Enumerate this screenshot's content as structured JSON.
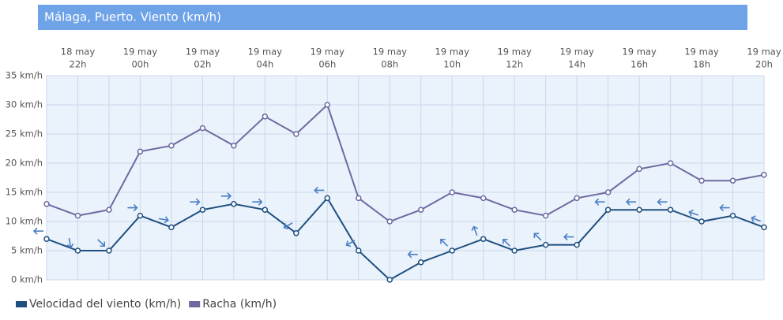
{
  "chart_data": {
    "type": "line",
    "title": "Málaga, Puerto. Viento (km/h)",
    "categories": [
      null,
      [
        "18 may",
        "22h"
      ],
      null,
      [
        "19 may",
        "00h"
      ],
      null,
      [
        "19 may",
        "02h"
      ],
      null,
      [
        "19 may",
        "04h"
      ],
      null,
      [
        "19 may",
        "06h"
      ],
      null,
      [
        "19 may",
        "08h"
      ],
      null,
      [
        "19 may",
        "10h"
      ],
      null,
      [
        "19 may",
        "12h"
      ],
      null,
      [
        "19 may",
        "14h"
      ],
      null,
      [
        "19 may",
        "16h"
      ],
      null,
      [
        "19 may",
        "18h"
      ],
      null,
      [
        "19 may",
        "20h"
      ]
    ],
    "series": [
      {
        "name": "Velocidad del viento (km/h)",
        "color": "#1f4f7f",
        "values": [
          7,
          5,
          5,
          11,
          9,
          12,
          13,
          12,
          8,
          14,
          5,
          0,
          3,
          5,
          7,
          5,
          6,
          6,
          12,
          12,
          12,
          10,
          11,
          9
        ],
        "arrow_angles": [
          180,
          80,
          45,
          0,
          10,
          0,
          0,
          0,
          150,
          180,
          150,
          null,
          180,
          225,
          250,
          225,
          225,
          180,
          180,
          180,
          180,
          200,
          180,
          200
        ],
        "arrow_color": "#4a7fc4"
      },
      {
        "name": "Racha (km/h)",
        "color": "#6e6aa0",
        "values": [
          13,
          11,
          12,
          22,
          23,
          26,
          23,
          28,
          25,
          30,
          14,
          10,
          12,
          15,
          14,
          12,
          11,
          14,
          15,
          19,
          20,
          17,
          17,
          18
        ]
      }
    ],
    "ylim": [
      0,
      35
    ],
    "yticks": [
      {
        "value": 0,
        "label": "0 km/h"
      },
      {
        "value": 5,
        "label": "5 km/h"
      },
      {
        "value": 10,
        "label": "10 km/h"
      },
      {
        "value": 15,
        "label": "15 km/h"
      },
      {
        "value": 20,
        "label": "20 km/h"
      },
      {
        "value": 25,
        "label": "25 km/h"
      },
      {
        "value": 30,
        "label": "30 km/h"
      },
      {
        "value": 35,
        "label": "35 km/h"
      }
    ],
    "grid": true
  }
}
